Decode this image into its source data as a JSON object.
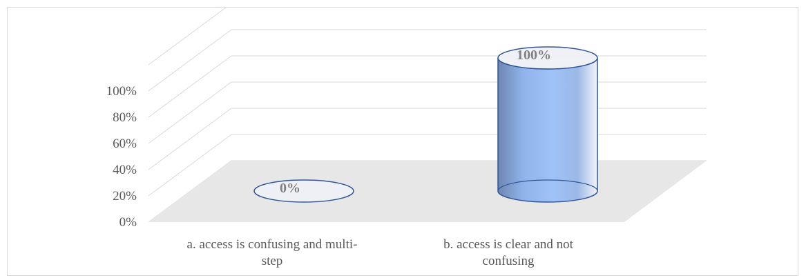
{
  "chart_data": {
    "type": "bar",
    "style": "3d-cylinder",
    "categories": [
      "a. access is confusing and multi-step",
      "b. access is clear and not confusing"
    ],
    "category_lines": [
      [
        "a. access is confusing and multi-",
        "step"
      ],
      [
        "b. access is clear and not",
        "confusing"
      ]
    ],
    "values": [
      0,
      100
    ],
    "data_labels": [
      "0%",
      "100%"
    ],
    "y_ticks": [
      "0%",
      "20%",
      "40%",
      "60%",
      "80%",
      "100%"
    ],
    "ylim": [
      0,
      100
    ],
    "title": "",
    "xlabel": "",
    "ylabel": "",
    "grid": true,
    "legend": "none",
    "colors": {
      "bar": "#9ec3f5",
      "bar_edge": "#2f5597",
      "floor": "#e7e7e7",
      "grid": "#d9d9d9",
      "text": "#595959"
    }
  }
}
